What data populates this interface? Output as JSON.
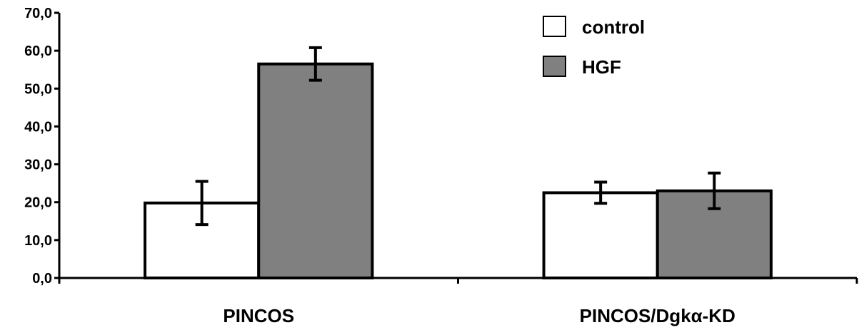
{
  "chart_data": {
    "type": "bar",
    "categories": [
      "PINCOS",
      "PINCOS/Dgkα-KD"
    ],
    "series": [
      {
        "name": "control",
        "color": "#ffffff",
        "values": [
          19.8,
          22.5
        ],
        "errors": [
          5.7,
          2.8
        ]
      },
      {
        "name": "HGF",
        "color": "#808080",
        "values": [
          56.5,
          23.0
        ],
        "errors": [
          4.3,
          4.7
        ]
      }
    ],
    "ylim": [
      0,
      70
    ],
    "yticks": [
      "0,0",
      "10,0",
      "20,0",
      "30,0",
      "40,0",
      "50,0",
      "60,0",
      "70,0"
    ],
    "xlabel": "",
    "ylabel": "",
    "title": "",
    "grid": false,
    "legend": "top-right"
  }
}
